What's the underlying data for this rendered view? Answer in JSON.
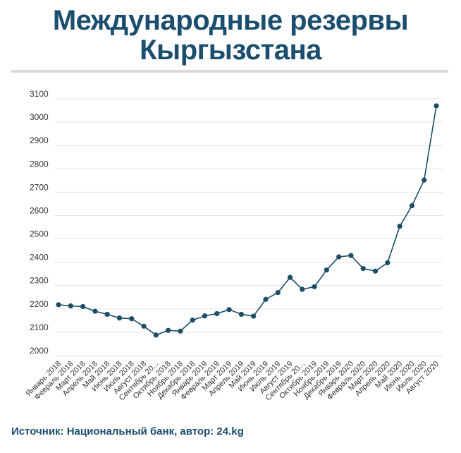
{
  "header": {
    "title_line1": "Международные резервы",
    "title_line2": "Кыргызстана"
  },
  "footer": {
    "source": "Источник: Национальный банк, автор: 24.kg"
  },
  "colors": {
    "title": "#1a4d6e",
    "line": "#1b4d63",
    "grid": "#e3e3e3",
    "divider": "#d9d9d9"
  },
  "chart_data": {
    "type": "line",
    "title": "Международные резервы Кыргызстана",
    "xlabel": "",
    "ylabel": "",
    "ylim": [
      2000,
      3100
    ],
    "yticks": [
      2000,
      2100,
      2200,
      2300,
      2400,
      2500,
      2600,
      2700,
      2800,
      2900,
      3000,
      3100
    ],
    "grid": true,
    "categories": [
      "Январь 2018",
      "Февраль 2018",
      "Март 2018",
      "Апрель 2018",
      "Май 2018",
      "Июнь 2018",
      "Июль 2018",
      "Август 2018",
      "Сентябрь 20...",
      "Октябрь 2018",
      "Ноябрь 2018",
      "Декабрь 2018",
      "Январь 2019",
      "Февраль 2019",
      "Март 2019",
      "Апрель 2019",
      "Май 2019",
      "Июнь 2019",
      "Июль 2019",
      "Август 2019",
      "Сентябрь 20...",
      "Октябрь 2019",
      "Ноябрь 2019",
      "Декабрь 2019",
      "Январь 2020",
      "Февраль 2020",
      "Март 2020",
      "Апрель 2020",
      "Май 2020",
      "Июнь 2020",
      "Июль 2020",
      "Август 2020"
    ],
    "series": [
      {
        "values": [
          2218,
          2213,
          2210,
          2190,
          2177,
          2161,
          2158,
          2126,
          2088,
          2108,
          2105,
          2152,
          2170,
          2180,
          2197,
          2177,
          2169,
          2241,
          2270,
          2335,
          2284,
          2295,
          2367,
          2423,
          2429,
          2373,
          2362,
          2398,
          2554,
          2642,
          2752,
          3070
        ]
      }
    ]
  }
}
